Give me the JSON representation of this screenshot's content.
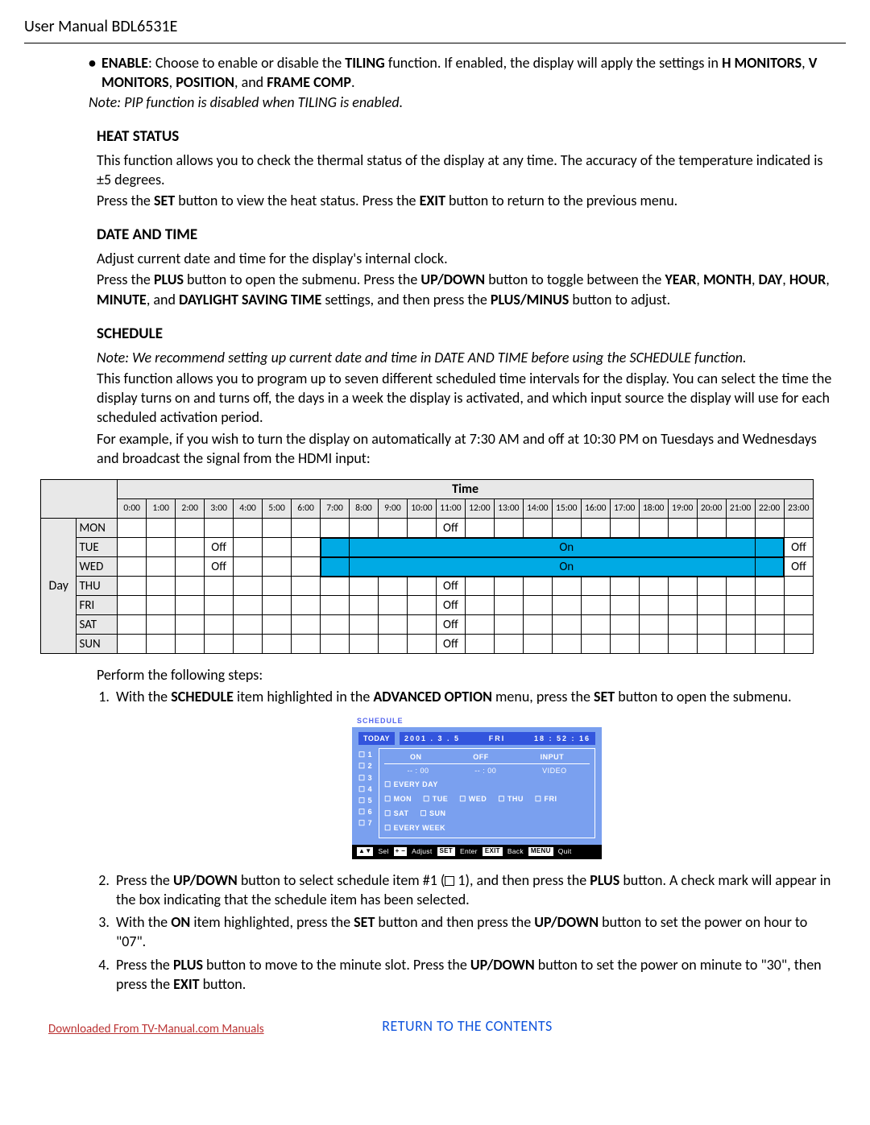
{
  "header": {
    "title": "User Manual BDL6531E"
  },
  "bullet_enable": {
    "lead": "ENABLE",
    "text1": ": Choose to enable or disable the ",
    "b1": "TILING",
    "text2": " function. If enabled, the display will apply the settings in ",
    "b2": "H MONITORS",
    "b3": "V MONITORS",
    "b4": "POSITION",
    "b5": "FRAME COMP",
    "sep": ", ",
    "and": ", and ",
    "dot": "."
  },
  "enable_note": "Note: PIP function is disabled when TILING is enabled.",
  "heat": {
    "title": "HEAT STATUS",
    "p1a": "This function allows you to check the thermal status of the display at any time. The accuracy of the temperature indicated is ",
    "pm": "±",
    "p1b": "5 degrees.",
    "p2a": "Press the ",
    "set": "SET",
    "p2b": " button to view the heat status. Press the ",
    "exit": "EXIT",
    "p2c": " button to return to the previous menu."
  },
  "date": {
    "title": "DATE AND TIME",
    "p1": "Adjust current date and time for the display's internal clock.",
    "p2": {
      "a": "Press the ",
      "plus": "PLUS",
      "b": " button to open the submenu. Press the ",
      "updown": "UP/DOWN",
      "c": " button to toggle between the ",
      "year": "YEAR",
      "month": "MONTH",
      "day": "DAY",
      "hour": "HOUR",
      "minute": "MINUTE",
      "and_dst": ", and ",
      "dst": "DAYLIGHT SAVING TIME",
      "d": " settings, and then press the ",
      "pm": "PLUS/MINUS",
      "e": " button to adjust."
    }
  },
  "schedule_h": "SCHEDULE",
  "schedule_note": "Note: We recommend setting up current date and time in DATE AND TIME before using the SCHEDULE function.",
  "schedule_p1": "This function allows you to program up to seven different scheduled time intervals for the display. You can select the time the display turns on and turns off, the days in a week the display is activated, and which input source the display will use for each scheduled activation period.",
  "schedule_p2": "For example, if you wish to turn the display on automatically at 7:30 AM and off at 10:30 PM on Tuesdays and Wednesdays and broadcast the signal from the HDMI input:",
  "schedule_table": {
    "time_header": "Time",
    "day_header": "Day",
    "hours": [
      "0:00",
      "1:00",
      "2:00",
      "3:00",
      "4:00",
      "5:00",
      "6:00",
      "7:00",
      "8:00",
      "9:00",
      "10:00",
      "11:00",
      "12:00",
      "13:00",
      "14:00",
      "15:00",
      "16:00",
      "17:00",
      "18:00",
      "19:00",
      "20:00",
      "21:00",
      "22:00",
      "23:00"
    ],
    "days": [
      "MON",
      "TUE",
      "WED",
      "THU",
      "FRI",
      "SAT",
      "SUN"
    ],
    "cells": {
      "off_label": "Off",
      "on_label": "On"
    },
    "row_styles": {
      "MON": {
        "off_at": 11
      },
      "TUE": {
        "off_early_at": 3,
        "blue_start": 7,
        "blue_end": 22,
        "on_at": 15,
        "off_at": 23
      },
      "WED": {
        "off_early_at": 3,
        "blue_start": 7,
        "blue_end": 22,
        "on_at": 15,
        "off_at": 23
      },
      "THU": {
        "off_at": 11
      },
      "FRI": {
        "off_at": 11
      },
      "SAT": {
        "off_at": 11
      },
      "SUN": {
        "off_at": 11
      }
    },
    "colors": {
      "header_grey": "#e8e8e8",
      "blue": "#00aae4",
      "border": "#000000"
    }
  },
  "perform": "Perform the following steps:",
  "step1": {
    "a": "With the ",
    "sched": "SCHEDULE",
    "b": " item highlighted in the ",
    "adv": "ADVANCED OPTION",
    "c": " menu, press the ",
    "set": "SET",
    "d": " button to open the submenu."
  },
  "osd": {
    "title": "SCHEDULE",
    "today": "TODAY",
    "date": "2001 . 3 . 5",
    "weekday": "FRI",
    "time": "18 : 52 : 16",
    "items": [
      "1",
      "2",
      "3",
      "4",
      "5",
      "6",
      "7"
    ],
    "cols": {
      "on": "ON",
      "off": "OFF",
      "input": "INPUT"
    },
    "vals": {
      "on": "-- : 00",
      "off": "-- : 00",
      "input": "VIDEO"
    },
    "days": [
      "EVERY DAY",
      "MON",
      "TUE",
      "WED",
      "THU",
      "FRI",
      "SAT",
      "SUN",
      "EVERY WEEK"
    ],
    "footer": {
      "sel": "Sel",
      "adjust": "Adjust",
      "enter": "Enter",
      "back": "Back",
      "quit": "Quit",
      "set": "SET",
      "exit": "EXIT",
      "menu": "MENU"
    },
    "colors": {
      "panel": "#7aa0ef",
      "dark": "#3355dd",
      "title": "#5566ee"
    }
  },
  "step2": {
    "a": "Press the ",
    "updown": "UP/DOWN",
    "b": " button to select schedule item #1 (",
    "c": " 1), and then press the ",
    "plus": "PLUS",
    "d": " button. A check mark will appear in the box indicating that the schedule item has been selected."
  },
  "step3": {
    "a": "With the ",
    "on": "ON",
    "b": " item highlighted, press the ",
    "set": "SET",
    "c": " button and then press the ",
    "updown": "UP/DOWN",
    "d": " button to set the power on hour to \"07\"."
  },
  "step4": {
    "a": "Press the ",
    "plus": "PLUS",
    "b": " button to move to the minute slot. Press the ",
    "updown": "UP/DOWN",
    "c": " button to set the power on minute to \"30\", then press the ",
    "exit": "EXIT",
    "d": " button."
  },
  "footer": {
    "left": "Downloaded From TV-Manual.com Manuals",
    "center": "RETURN TO THE CONTENTS"
  }
}
